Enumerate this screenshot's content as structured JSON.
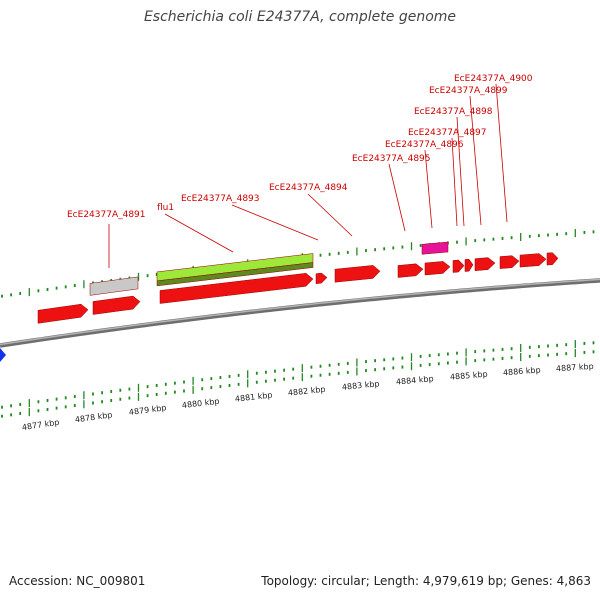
{
  "title": "Escherichia coli E24377A, complete genome",
  "footer": {
    "accession_label": "Accession:",
    "accession": "NC_009801",
    "topology_label": "Topology:",
    "topology": "circular;",
    "length_label": "Length:",
    "length": "4,979,619 bp;",
    "genes_label": "Genes:",
    "genes": "4,863"
  },
  "colors": {
    "backbone": "#8c8c8c",
    "gene_red": "#ee1111",
    "trna_grey": "#c8c8c8",
    "feature_green": "#9ee83a",
    "feature_olive": "#5c8a1e",
    "magenta": "#e6129a",
    "tick_green": "#228822",
    "label_red": "#cc0000",
    "arrow_blue": "#1133ee"
  },
  "scale_ticks": [
    {
      "label": "4877 kbp"
    },
    {
      "label": "4878 kbp"
    },
    {
      "label": "4879 kbp"
    },
    {
      "label": "4880 kbp"
    },
    {
      "label": "4881 kbp"
    },
    {
      "label": "4882 kbp"
    },
    {
      "label": "4883 kbp"
    },
    {
      "label": "4884 kbp"
    },
    {
      "label": "4885 kbp"
    },
    {
      "label": "4886 kbp"
    },
    {
      "label": "4887 kbp"
    }
  ],
  "gene_labels": [
    "EcE24377A_4891",
    "flu1",
    "EcE24377A_4893",
    "EcE24377A_4894",
    "EcE24377A_4895",
    "EcE24377A_4896",
    "EcE24377A_4897",
    "EcE24377A_4898",
    "EcE24377A_4899",
    "EcE24377A_4900"
  ]
}
